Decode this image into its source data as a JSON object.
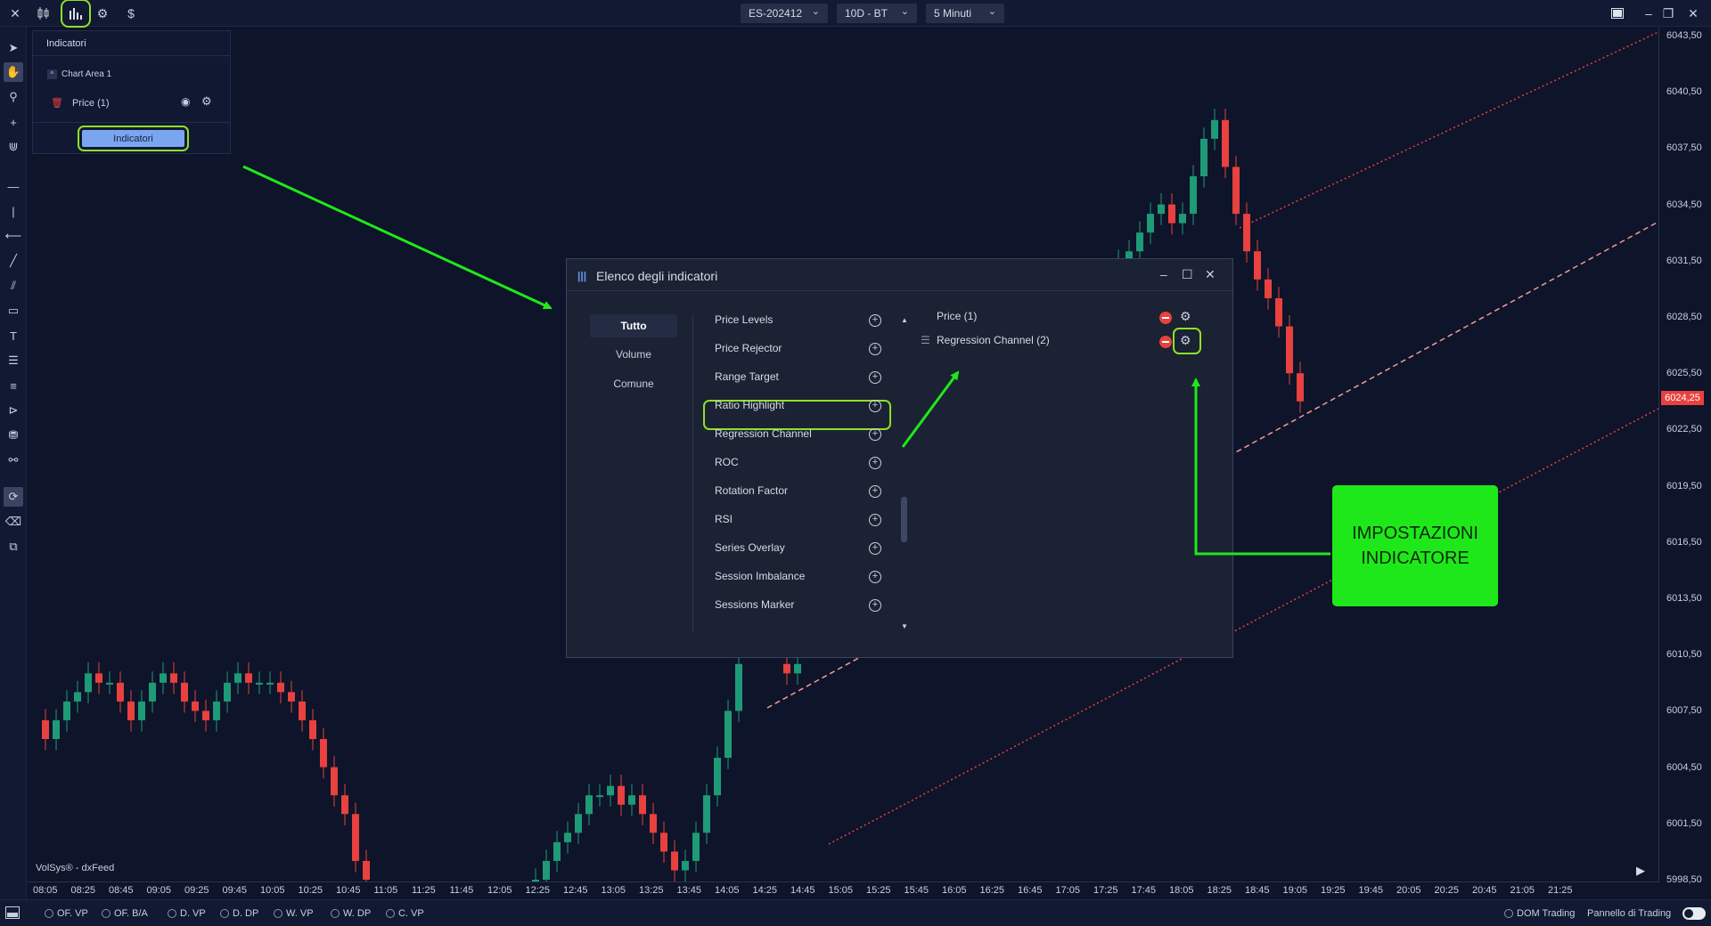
{
  "topbar": {
    "contract": "ES-202412",
    "timeframe": "10D - BT",
    "interval": "5 Minuti"
  },
  "indicators_panel": {
    "title": "Indicatori",
    "area": "Chart Area 1",
    "price_item": "Price (1)",
    "button": "Indicatori"
  },
  "dialog": {
    "title": "Elenco degli indicatori",
    "categories": [
      "Tutto",
      "Volume",
      "Comune"
    ],
    "items": [
      "Price Levels",
      "Price Rejector",
      "Range Target",
      "Ratio Highlight",
      "Regression Channel",
      "ROC",
      "Rotation Factor",
      "RSI",
      "Series Overlay",
      "Session Imbalance",
      "Sessions Marker"
    ],
    "selected": [
      "Price (1)",
      "Regression Channel (2)"
    ]
  },
  "callout": {
    "line1": "IMPOSTAZIONI",
    "line2": "INDICATORE"
  },
  "yaxis": {
    "labels": [
      "6043,50",
      "6040,50",
      "6037,50",
      "6034,50",
      "6031,50",
      "6028,50",
      "6025,50",
      "6022,50",
      "6019,50",
      "6016,50",
      "6013,50",
      "6010,50",
      "6007,50",
      "6004,50",
      "6001,50",
      "5998,50"
    ],
    "last_price": "6024,25"
  },
  "xaxis": {
    "labels": [
      "08:05",
      "08:25",
      "08:45",
      "09:05",
      "09:25",
      "09:45",
      "10:05",
      "10:25",
      "10:45",
      "11:05",
      "11:25",
      "11:45",
      "12:05",
      "12:25",
      "12:45",
      "13:05",
      "13:25",
      "13:45",
      "14:05",
      "14:25",
      "14:45",
      "15:05",
      "15:25",
      "15:45",
      "16:05",
      "16:25",
      "16:45",
      "17:05",
      "17:25",
      "17:45",
      "18:05",
      "18:25",
      "18:45",
      "19:05",
      "19:25",
      "19:45",
      "20:05",
      "20:25",
      "20:45",
      "21:05",
      "21:25"
    ]
  },
  "credit": "VolSys® - dxFeed",
  "bottombar": {
    "toggles": [
      "OF. VP",
      "OF. B/A",
      "D. VP",
      "D. DP",
      "W. VP",
      "W. DP",
      "C. VP"
    ],
    "dom": "DOM Trading",
    "panel": "Pannello di Trading"
  },
  "colors": {
    "background": "#0e1429",
    "bull": "#1f9a77",
    "bear": "#e8413f",
    "highlight": "#8fe029",
    "callout": "#1fe81a",
    "button": "#7aa6f0"
  }
}
